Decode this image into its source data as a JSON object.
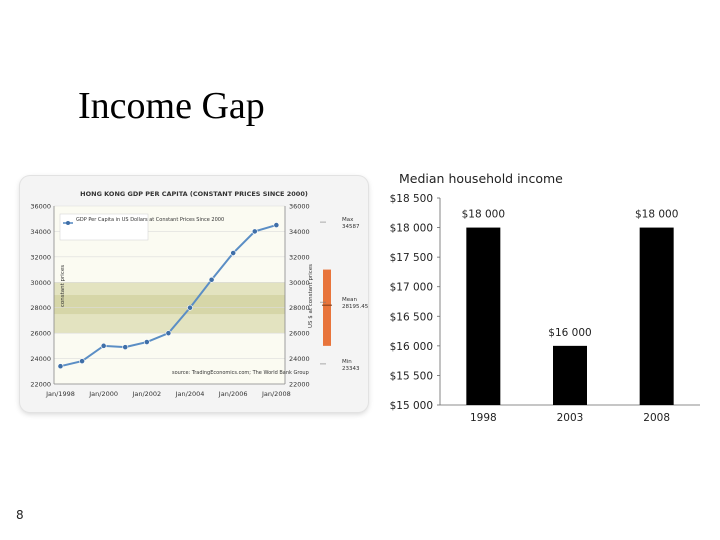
{
  "slide": {
    "title": "Income Gap",
    "page_number": "8"
  },
  "chart_data": [
    {
      "type": "line",
      "title": "HONG KONG GDP PER CAPITA (CONSTANT PRICES SINCE 2000)",
      "legend_label": "GDP Per Capita in US Dollars at Constant Prices Since 2000",
      "left_axis_label": "constant prices",
      "right_axis_label": "US $ at constant prices",
      "source": "source: TradingEconomics.com; The World Bank Group",
      "x_tick_labels": [
        "Jan/1998",
        "Jan/2000",
        "Jan/2002",
        "Jan/2004",
        "Jan/2006",
        "Jan/2008"
      ],
      "y_tick_labels_left": [
        "36000",
        "34000",
        "32000",
        "30000",
        "28000",
        "26000",
        "24000",
        "22000"
      ],
      "y_tick_labels_right": [
        "36000",
        "34000",
        "32000",
        "30000",
        "28000",
        "26000",
        "24000",
        "22000"
      ],
      "ylim": [
        22000,
        36000
      ],
      "xlim": [
        1997.7,
        2008.4
      ],
      "series": [
        {
          "x": [
            1998,
            1999,
            2000,
            2001,
            2002,
            2003,
            2004,
            2005,
            2006,
            2007,
            2008
          ],
          "values": [
            23400,
            23800,
            25000,
            24900,
            25300,
            26000,
            28000,
            30200,
            32300,
            34000,
            34500
          ]
        }
      ],
      "annotations": {
        "max": {
          "label": "Max",
          "value": "34587"
        },
        "mean": {
          "label": "Mean",
          "value": "28195.45"
        },
        "min": {
          "label": "Min",
          "value": "23343"
        }
      },
      "colors": {
        "line": "#5b8ec5",
        "marker": "#3f6fa8",
        "band": "#e3e3c0",
        "bar": "#e8743b"
      }
    },
    {
      "type": "bar",
      "title": "Median household income",
      "categories": [
        "1998",
        "2003",
        "2008"
      ],
      "values": [
        18000,
        16000,
        18000
      ],
      "data_labels": [
        "$18 000",
        "$16 000",
        "$18 000"
      ],
      "ylim": [
        15000,
        18500
      ],
      "y_tick_labels": [
        "$18 500",
        "$18 000",
        "$17 500",
        "$17 000",
        "$16 500",
        "$16 000",
        "$15 500",
        "$15 000"
      ],
      "colors": {
        "bar": "#000000"
      }
    }
  ]
}
